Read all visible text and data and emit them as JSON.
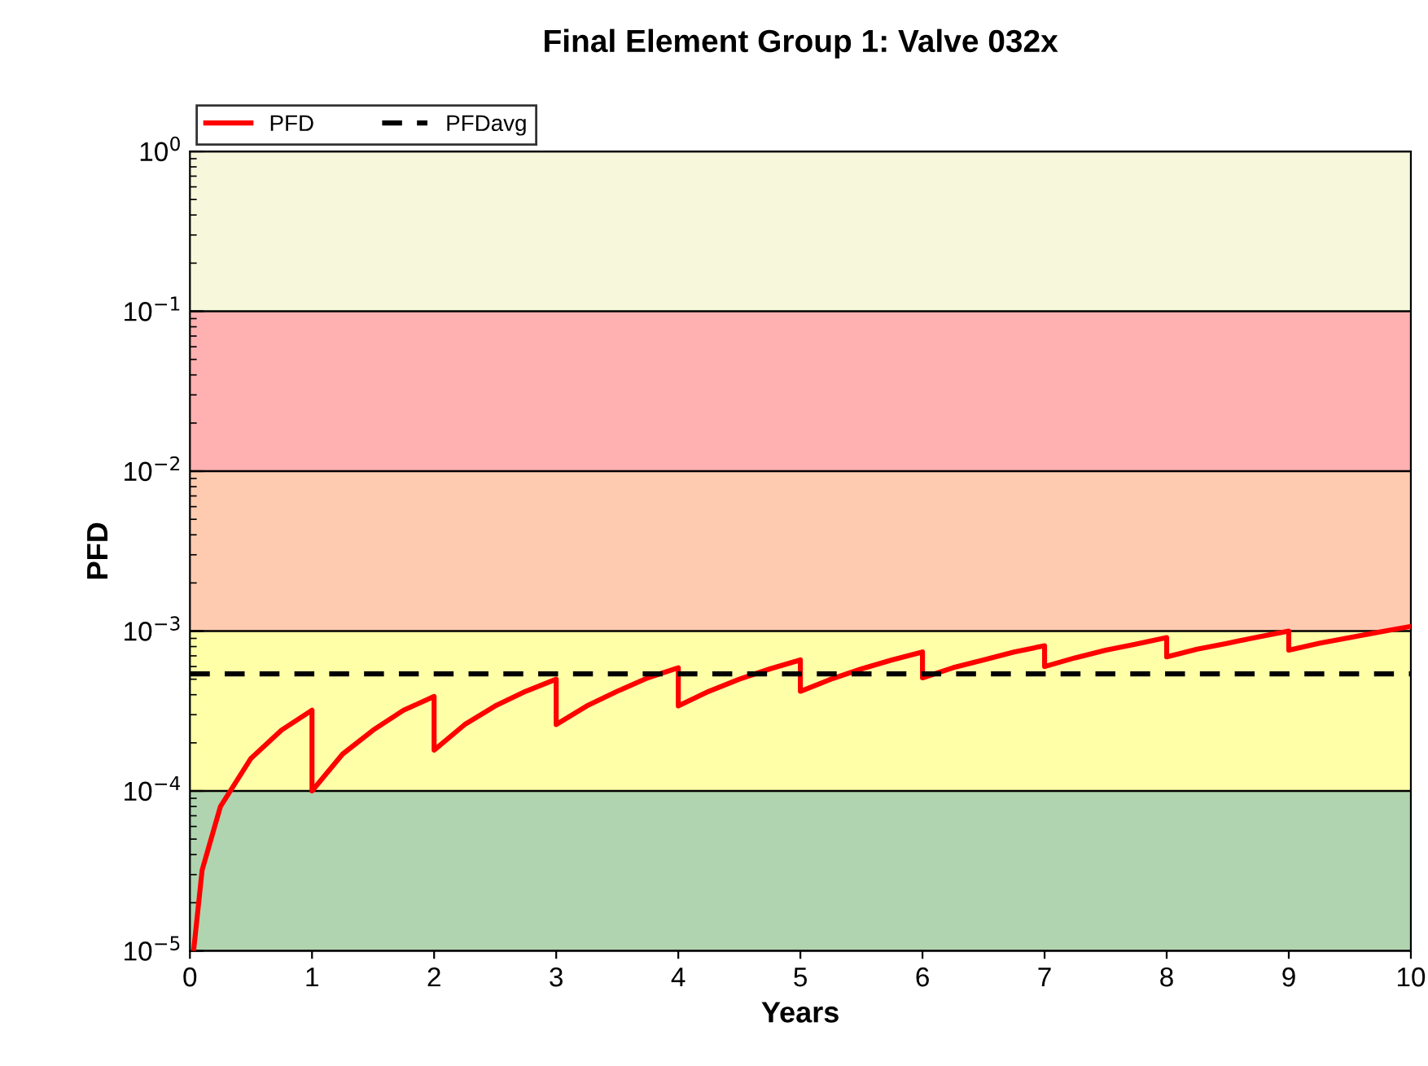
{
  "chart_data": {
    "type": "line",
    "title": "Final Element Group 1: Valve 032x",
    "xlabel": "Years",
    "ylabel": "PFD",
    "log": "y",
    "xlim": [
      0,
      10
    ],
    "xticks": [
      0,
      1,
      2,
      3,
      4,
      5,
      6,
      7,
      8,
      9,
      10
    ],
    "ylim": [
      1e-05,
      1
    ],
    "yticks": [
      {
        "value": 1e-05,
        "label": "10$^{−5}$"
      },
      {
        "value": 0.0001,
        "label": "10$^{−4}$"
      },
      {
        "value": 0.001,
        "label": "10$^{−3}$"
      },
      {
        "value": 0.01,
        "label": "10$^{−2}$"
      },
      {
        "value": 0.1,
        "label": "10$^{−1}$"
      },
      {
        "value": 1,
        "label": "10$^{0}$"
      }
    ],
    "grid": "y",
    "legend": "top left",
    "marker": "none",
    "series": [
      {
        "name": "PFD",
        "color": "#ff0000",
        "line_style": "solid",
        "x": [
          0.03,
          0.1,
          0.25,
          0.5,
          0.75,
          1.0,
          1.0,
          1.25,
          1.5,
          1.75,
          2.0,
          2.0,
          2.25,
          2.5,
          2.75,
          3.0,
          3.0,
          3.25,
          3.5,
          3.75,
          4.0,
          4.0,
          4.25,
          4.5,
          4.75,
          5.0,
          5.0,
          5.25,
          5.5,
          5.75,
          6.0,
          6.0,
          6.25,
          6.5,
          6.75,
          7.0,
          7.0,
          7.25,
          7.5,
          7.75,
          8.0,
          8.0,
          8.25,
          8.5,
          8.75,
          9.0,
          9.0,
          9.25,
          9.5,
          9.75,
          10.0
        ],
        "values": [
          1e-05,
          3.2e-05,
          8e-05,
          0.00016,
          0.00024,
          0.00032,
          0.0001,
          0.00017,
          0.00024,
          0.00032,
          0.00039,
          0.00018,
          0.00026,
          0.00034,
          0.00042,
          0.0005,
          0.00026,
          0.00034,
          0.00042,
          0.00051,
          0.00059,
          0.00034,
          0.00042,
          0.0005,
          0.00058,
          0.00066,
          0.00042,
          0.0005,
          0.00058,
          0.00066,
          0.00074,
          0.00051,
          0.00059,
          0.00066,
          0.00074,
          0.00081,
          0.0006,
          0.00068,
          0.00076,
          0.00083,
          0.00091,
          0.00069,
          0.00077,
          0.00084,
          0.00092,
          0.001,
          0.00076,
          0.00084,
          0.00091,
          0.00099,
          0.00107
        ]
      },
      {
        "name": "PFDavg",
        "color": "#000000",
        "line_style": "dashed",
        "x": [
          0,
          10
        ],
        "values": [
          0.00054,
          0.00054
        ]
      }
    ],
    "bands": [
      {
        "axis": "y",
        "from": 0.1,
        "to": 1,
        "color": "#f0f0c0"
      },
      {
        "axis": "y",
        "from": 0.01,
        "to": 0.1,
        "color": "#ff7070"
      },
      {
        "axis": "y",
        "from": 0.001,
        "to": 0.01,
        "color": "#ffa070"
      },
      {
        "axis": "y",
        "from": 0.0001,
        "to": 0.001,
        "color": "#ffff60"
      },
      {
        "axis": "y",
        "from": 1e-05,
        "to": 0.0001,
        "color": "#70b070"
      }
    ]
  }
}
